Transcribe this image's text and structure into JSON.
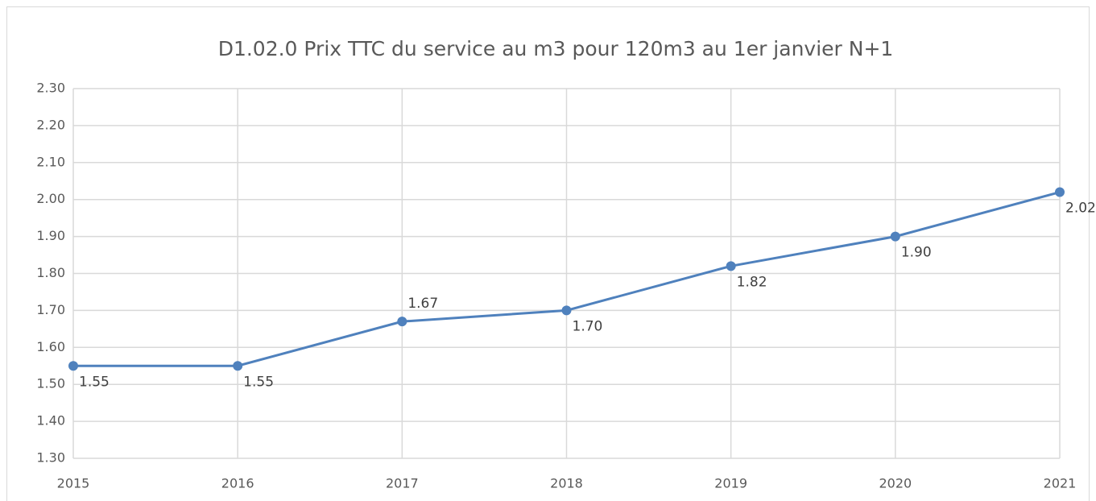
{
  "chart_data": {
    "type": "line",
    "title": "D1.02.0 Prix TTC du service au m3 pour 120m3 au 1er janvier N+1",
    "categories": [
      "2015",
      "2016",
      "2017",
      "2018",
      "2019",
      "2020",
      "2021"
    ],
    "series": [
      {
        "name": "D1.02.0",
        "color": "#4f81bd",
        "values": [
          1.55,
          1.55,
          1.67,
          1.7,
          1.82,
          1.9,
          2.02
        ],
        "value_labels": [
          "1.55",
          "1.55",
          "1.67",
          "1.70",
          "1.82",
          "1.90",
          "2.02"
        ]
      }
    ],
    "ylim": [
      1.3,
      2.3
    ],
    "yticks": [
      {
        "value": 1.3,
        "label": "1.30"
      },
      {
        "value": 1.4,
        "label": "1.40"
      },
      {
        "value": 1.5,
        "label": "1.50"
      },
      {
        "value": 1.6,
        "label": "1.60"
      },
      {
        "value": 1.7,
        "label": "1.70"
      },
      {
        "value": 1.8,
        "label": "1.80"
      },
      {
        "value": 1.9,
        "label": "1.90"
      },
      {
        "value": 2.0,
        "label": "2.00"
      },
      {
        "value": 2.1,
        "label": "2.10"
      },
      {
        "value": 2.2,
        "label": "2.20"
      },
      {
        "value": 2.3,
        "label": "2.30"
      }
    ],
    "grid": true
  }
}
